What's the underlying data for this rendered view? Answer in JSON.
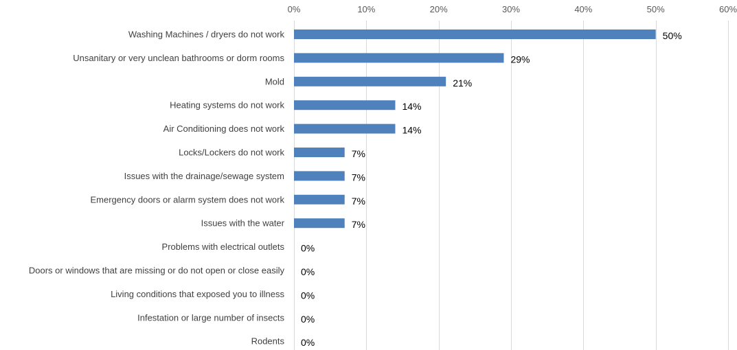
{
  "chart_data": {
    "type": "bar",
    "orientation": "horizontal",
    "categories": [
      "Washing Machines / dryers do not work",
      "Unsanitary or very unclean bathrooms or dorm rooms",
      "Mold",
      "Heating systems do not work",
      "Air Conditioning does not work",
      "Locks/Lockers do not work",
      "Issues with the drainage/sewage system",
      "Emergency doors or alarm system does not work",
      "Issues with the water",
      "Problems with electrical outlets",
      "Doors or windows that are missing or do not open or close easily",
      "Living conditions that exposed you to illness",
      "Infestation or large number of insects",
      "Rodents"
    ],
    "values": [
      50,
      29,
      21,
      14,
      14,
      7,
      7,
      7,
      7,
      0,
      0,
      0,
      0,
      0
    ],
    "data_labels": [
      "50%",
      "29%",
      "21%",
      "14%",
      "14%",
      "7%",
      "7%",
      "7%",
      "7%",
      "0%",
      "0%",
      "0%",
      "0%",
      "0%"
    ],
    "x_ticks": [
      0,
      10,
      20,
      30,
      40,
      50,
      60
    ],
    "x_tick_labels": [
      "0%",
      "10%",
      "20%",
      "30%",
      "40%",
      "50%",
      "60%"
    ],
    "xlim": [
      0,
      60
    ],
    "x_axis_position": "top",
    "grid": true,
    "legend": "none",
    "bar_color": "#4f81bd"
  }
}
